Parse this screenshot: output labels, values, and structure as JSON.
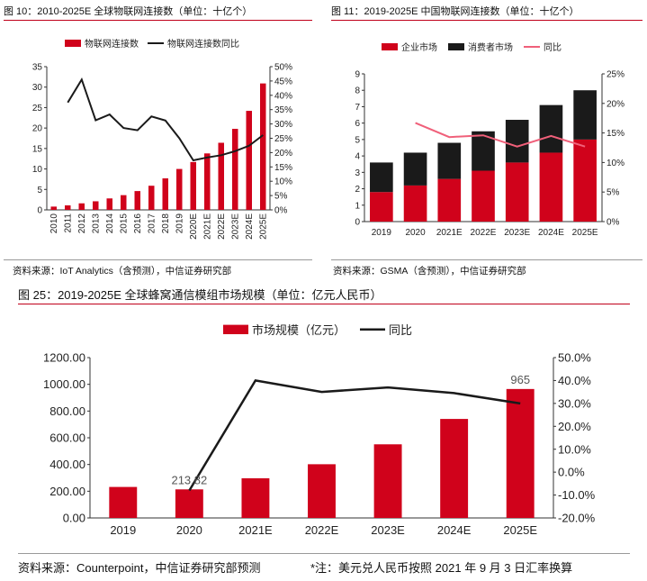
{
  "colors": {
    "red": "#d0021b",
    "black": "#1a1a1a",
    "pink": "#f0607a",
    "axis": "#333333",
    "grid": "#dddddd"
  },
  "figure10": {
    "title": "图 10：2010-2025E  全球物联网连接数（单位：十亿个）",
    "source": "资料来源：IoT Analytics（含预测），中信证券研究部"
  },
  "figure11": {
    "title": "图 11：2019-2025E  中国物联网连接数（单位：十亿个）",
    "source": "资料来源：GSMA（含预测），中信证券研究部"
  },
  "figure25": {
    "title": "图 25：2019-2025E  全球蜂窝通信模组市场规模（单位：亿元人民币）",
    "source": "资料来源：Counterpoint，中信证券研究部预测",
    "note": "*注：美元兑人民币按照 2021 年 9 月 3 日汇率换算"
  },
  "chart_data": [
    {
      "id": "fig10",
      "type": "bar+line",
      "title": "图 10：2010-2025E  全球物联网连接数（单位：十亿个）",
      "categories": [
        "2010",
        "2011",
        "2012",
        "2013",
        "2014",
        "2015",
        "2016",
        "2017",
        "2018",
        "2019",
        "2020E",
        "2021E",
        "2022E",
        "2023E",
        "2024E",
        "2025E"
      ],
      "series": [
        {
          "name": "物联网连接数",
          "kind": "bar",
          "axis": "left",
          "values": [
            0.8,
            1.1,
            1.6,
            2.1,
            2.8,
            3.6,
            4.6,
            5.9,
            7.7,
            10.0,
            11.7,
            13.8,
            16.4,
            19.8,
            24.2,
            30.9
          ]
        },
        {
          "name": "物联网连接数同比",
          "kind": "line",
          "axis": "right",
          "unit": "%",
          "values": [
            null,
            37.5,
            45.5,
            31.3,
            33.3,
            28.6,
            27.8,
            32.6,
            31.2,
            25.0,
            17.3,
            18.3,
            19.1,
            20.5,
            22.4,
            26.1
          ]
        }
      ],
      "yleft": {
        "min": 0,
        "max": 35,
        "ticks": [
          "0",
          "5",
          "10",
          "15",
          "20",
          "25",
          "30",
          "35"
        ]
      },
      "yright": {
        "min": 0,
        "max": 50,
        "ticks": [
          "0%",
          "5%",
          "10%",
          "15%",
          "20%",
          "25%",
          "30%",
          "35%",
          "40%",
          "45%",
          "50%"
        ]
      },
      "legend": [
        "物联网连接数",
        "物联网连接数同比"
      ]
    },
    {
      "id": "fig11",
      "type": "stacked-bar+line",
      "title": "图 11：2019-2025E  中国物联网连接数（单位：十亿个）",
      "categories": [
        "2019",
        "2020",
        "2021E",
        "2022E",
        "2023E",
        "2024E",
        "2025E"
      ],
      "series": [
        {
          "name": "企业市场",
          "kind": "bar",
          "axis": "left",
          "values": [
            1.8,
            2.2,
            2.6,
            3.1,
            3.6,
            4.2,
            5.0
          ]
        },
        {
          "name": "消费者市场",
          "kind": "bar",
          "axis": "left",
          "values": [
            1.8,
            2.0,
            2.2,
            2.4,
            2.6,
            2.9,
            3.0
          ]
        },
        {
          "name": "同比",
          "kind": "line",
          "axis": "right",
          "unit": "%",
          "values": [
            null,
            16.7,
            14.3,
            14.6,
            12.7,
            14.5,
            12.7
          ]
        }
      ],
      "yleft": {
        "min": 0,
        "max": 9,
        "ticks": [
          "0",
          "1",
          "2",
          "3",
          "4",
          "5",
          "6",
          "7",
          "8",
          "9"
        ]
      },
      "yright": {
        "min": 0,
        "max": 25,
        "ticks": [
          "0%",
          "5%",
          "10%",
          "15%",
          "20%",
          "25%"
        ]
      },
      "legend": [
        "企业市场",
        "消费者市场",
        "同比"
      ]
    },
    {
      "id": "fig25",
      "type": "bar+line",
      "title": "图 25：2019-2025E  全球蜂窝通信模组市场规模（单位：亿元人民币）",
      "categories": [
        "2019",
        "2020",
        "2021E",
        "2022E",
        "2023E",
        "2024E",
        "2025E"
      ],
      "series": [
        {
          "name": "市场规模（亿元）",
          "kind": "bar",
          "axis": "left",
          "values": [
            232,
            213.82,
            297,
            402,
            551,
            741,
            965
          ]
        },
        {
          "name": "同比",
          "kind": "line",
          "axis": "right",
          "unit": "%",
          "values": [
            null,
            -8,
            40,
            35,
            37,
            34.5,
            30
          ]
        }
      ],
      "data_labels": [
        {
          "index": 1,
          "text": "213.82"
        },
        {
          "index": 6,
          "text": "965"
        }
      ],
      "yleft": {
        "min": 0,
        "max": 1200,
        "ticks": [
          "0.00",
          "200.00",
          "400.00",
          "600.00",
          "800.00",
          "1000.00",
          "1200.00"
        ]
      },
      "yright": {
        "min": -20,
        "max": 50,
        "ticks": [
          "-20.0%",
          "-10.0%",
          "0.0%",
          "10.0%",
          "20.0%",
          "30.0%",
          "40.0%",
          "50.0%"
        ]
      },
      "legend": [
        "市场规模（亿元）",
        "同比"
      ]
    }
  ]
}
